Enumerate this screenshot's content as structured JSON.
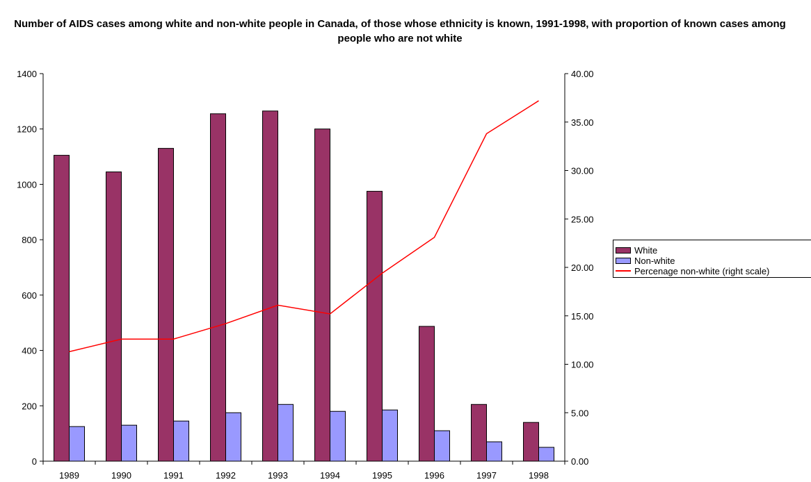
{
  "chart_data": {
    "type": "bar",
    "title": "Number of AIDS cases among white and non-white people in Canada, of those whose ethnicity is known, 1991-1998, with proportion of known cases among people who are not white",
    "categories": [
      "1989",
      "1990",
      "1991",
      "1992",
      "1993",
      "1994",
      "1995",
      "1996",
      "1997",
      "1998"
    ],
    "series": [
      {
        "name": "White",
        "type": "bar",
        "axis": "left",
        "color": "#993366",
        "values": [
          1105,
          1045,
          1130,
          1255,
          1265,
          1200,
          975,
          487,
          205,
          140
        ]
      },
      {
        "name": "Non-white",
        "type": "bar",
        "axis": "left",
        "color": "#9999ff",
        "values": [
          125,
          130,
          145,
          175,
          205,
          180,
          185,
          110,
          70,
          50
        ]
      },
      {
        "name": "Percenage non-white (right scale)",
        "type": "line",
        "axis": "right",
        "color": "#ff0000",
        "values": [
          11.3,
          12.6,
          12.6,
          14.2,
          16.1,
          15.2,
          19.4,
          23.1,
          33.8,
          37.2
        ]
      }
    ],
    "y_left": {
      "range": [
        0,
        1400
      ],
      "ticks": [
        "0",
        "200",
        "400",
        "600",
        "800",
        "1000",
        "1200",
        "1400"
      ]
    },
    "y_right": {
      "range": [
        0,
        40
      ],
      "ticks": [
        "0.00",
        "5.00",
        "10.00",
        "15.00",
        "20.00",
        "25.00",
        "30.00",
        "35.00",
        "40.00"
      ]
    },
    "xlabel": "",
    "ylabel": "",
    "grid": false,
    "legend": "right"
  }
}
